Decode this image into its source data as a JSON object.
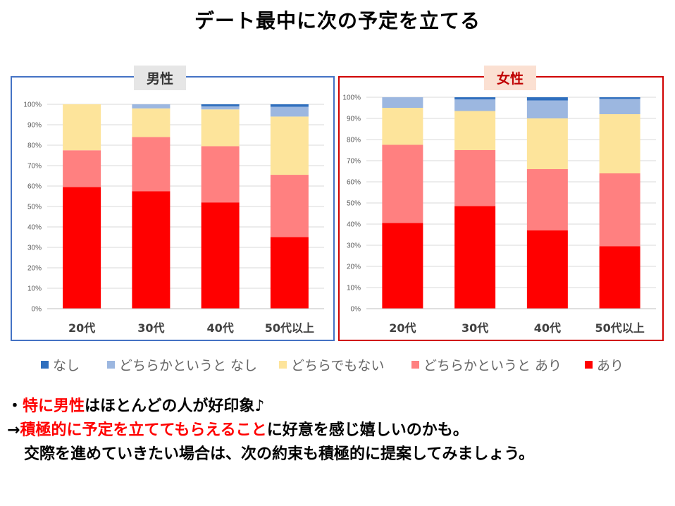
{
  "title": "デート最中に次の予定を立てる",
  "panels": {
    "male_label": "男性",
    "female_label": "女性"
  },
  "legend": [
    {
      "name": "なし",
      "color": "#2f6fbe"
    },
    {
      "name": "どちらかというと なし",
      "color": "#9cb7e0"
    },
    {
      "name": "どちらでもない",
      "color": "#fde49b"
    },
    {
      "name": "どちらかというと あり",
      "color": "#ff8080"
    },
    {
      "name": "あり",
      "color": "#ff0000"
    }
  ],
  "chart_data": [
    {
      "type": "bar",
      "stacked": true,
      "categories": [
        "20代",
        "30代",
        "40代",
        "50代以上"
      ],
      "ylim": [
        0,
        100
      ],
      "yticks": [
        "0%",
        "10%",
        "20%",
        "30%",
        "40%",
        "50%",
        "60%",
        "70%",
        "80%",
        "90%",
        "100%"
      ],
      "grid": true,
      "series": [
        {
          "name": "あり",
          "values": [
            59.5,
            57.5,
            52,
            35
          ],
          "color": "#ff0000"
        },
        {
          "name": "どちらかというと あり",
          "values": [
            18,
            26.5,
            27.5,
            30.5
          ],
          "color": "#ff8080"
        },
        {
          "name": "どちらでもない",
          "values": [
            22.5,
            14,
            18,
            28.5
          ],
          "color": "#fde49b"
        },
        {
          "name": "どちらかというと なし",
          "values": [
            0,
            2,
            1.5,
            4.8
          ],
          "color": "#9cb7e0"
        },
        {
          "name": "なし",
          "values": [
            0,
            0,
            1,
            1.2
          ],
          "color": "#2f6fbe"
        }
      ]
    },
    {
      "type": "bar",
      "stacked": true,
      "categories": [
        "20代",
        "30代",
        "40代",
        "50代以上"
      ],
      "ylim": [
        0,
        100
      ],
      "yticks": [
        "0%",
        "10%",
        "20%",
        "30%",
        "40%",
        "50%",
        "60%",
        "70%",
        "80%",
        "90%",
        "100%"
      ],
      "grid": true,
      "series": [
        {
          "name": "あり",
          "values": [
            40.5,
            48.5,
            37,
            29.5
          ],
          "color": "#ff0000"
        },
        {
          "name": "どちらかというと あり",
          "values": [
            37,
            26.5,
            29,
            34.5
          ],
          "color": "#ff8080"
        },
        {
          "name": "どちらでもない",
          "values": [
            17.5,
            18.5,
            24,
            28
          ],
          "color": "#fde49b"
        },
        {
          "name": "どちらかというと なし",
          "values": [
            5,
            5.5,
            8.5,
            7.2
          ],
          "color": "#9cb7e0"
        },
        {
          "name": "なし",
          "values": [
            0,
            1,
            1.5,
            0.8
          ],
          "color": "#2f6fbe"
        }
      ]
    }
  ],
  "notes": {
    "line1_bullet": "・",
    "line1_red": "特に男性",
    "line1_rest": "はほとんどの人が好印象♪",
    "line2_arrow": "→",
    "line2_red": "積極的に予定を立ててもらえること",
    "line2_rest": "に好意を感じ嬉しいのかも。",
    "line3": "交際を進めていきたい場合は、次の約束も積極的に提案してみましょう。"
  }
}
